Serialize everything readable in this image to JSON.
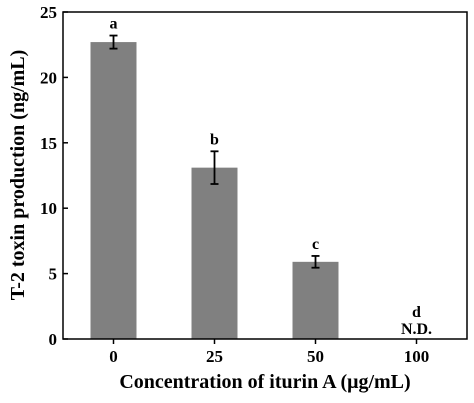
{
  "chart_data": {
    "type": "bar",
    "title": "",
    "xlabel": "Concentration of iturin A (μg/mL)",
    "ylabel": "T-2 toxin production (ng/mL)",
    "categories": [
      "0",
      "25",
      "50",
      "100"
    ],
    "values": [
      22.7,
      13.1,
      5.9,
      0
    ],
    "errors": [
      0.5,
      1.25,
      0.45,
      0
    ],
    "significance_letters": [
      "a",
      "b",
      "c",
      "d"
    ],
    "annotations": [
      "",
      "",
      "",
      "N.D."
    ],
    "yticks": [
      0,
      5,
      10,
      15,
      20,
      25
    ],
    "ylim": [
      0,
      25
    ],
    "grid": false,
    "bar_color": "#808080"
  }
}
